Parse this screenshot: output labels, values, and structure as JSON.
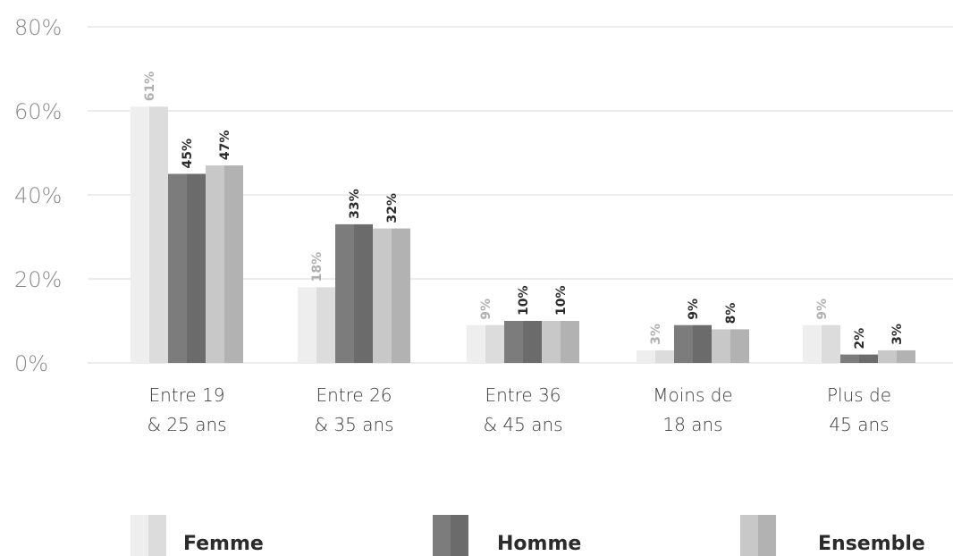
{
  "chart_data": {
    "type": "bar",
    "categories": [
      [
        "Entre 19",
        "& 25 ans"
      ],
      [
        "Entre 26",
        "& 35 ans"
      ],
      [
        "Entre 36",
        "& 45 ans"
      ],
      [
        "Moins de",
        "18 ans"
      ],
      [
        "Plus de",
        "45 ans"
      ]
    ],
    "series": [
      {
        "name": "Femme",
        "values": [
          61,
          18,
          9,
          3,
          9
        ],
        "labels": [
          "61%",
          "18%",
          "9%",
          "3%",
          "9%"
        ],
        "color_a": "#eeeeee",
        "color_b": "#dcdcdc",
        "label_color": "#b0b0b0"
      },
      {
        "name": "Homme",
        "values": [
          45,
          33,
          10,
          9,
          2
        ],
        "labels": [
          "45%",
          "33%",
          "10%",
          "9%",
          "2%"
        ],
        "color_a": "#7c7c7c",
        "color_b": "#6b6b6b",
        "label_color": "#2b2b2b"
      },
      {
        "name": "Ensemble",
        "values": [
          47,
          32,
          10,
          8,
          3
        ],
        "labels": [
          "47%",
          "32%",
          "10%",
          "8%",
          "3%"
        ],
        "color_a": "#c8c8c8",
        "color_b": "#b2b2b2",
        "label_color": "#2b2b2b"
      }
    ],
    "y_ticks": [
      "0%",
      "20%",
      "40%",
      "60%",
      "80%"
    ],
    "ylim": [
      0,
      80
    ],
    "grid": true,
    "legend_position": "bottom"
  }
}
